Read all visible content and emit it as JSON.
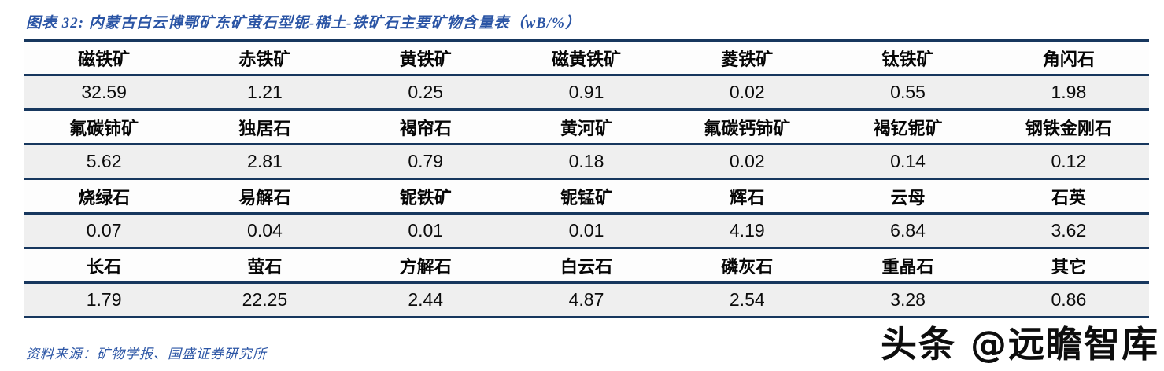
{
  "title": "图表 32:  内蒙古白云博鄂矿东矿萤石型铌-稀土-铁矿石主要矿物含量表（wB/%）",
  "source": "资料来源：矿物学报、国盛证券研究所",
  "watermark": "头条 @远瞻智库",
  "colors": {
    "rule_navy": "#17375e",
    "caption_blue": "#2b55a5",
    "value_row_bg": "#efefef",
    "name_row_bg": "#fdfdfd",
    "watermark_black": "#0d0d0d"
  },
  "table": {
    "bands": [
      {
        "names": [
          "磁铁矿",
          "赤铁矿",
          "黄铁矿",
          "磁黄铁矿",
          "菱铁矿",
          "钛铁矿",
          "角闪石"
        ],
        "values": [
          "32.59",
          "1.21",
          "0.25",
          "0.91",
          "0.02",
          "0.55",
          "1.98"
        ]
      },
      {
        "names": [
          "氟碳铈矿",
          "独居石",
          "褐帘石",
          "黄河矿",
          "氟碳钙铈矿",
          "褐钇铌矿",
          "钢铁金刚石"
        ],
        "values": [
          "5.62",
          "2.81",
          "0.79",
          "0.18",
          "0.02",
          "0.14",
          "0.12"
        ]
      },
      {
        "names": [
          "烧绿石",
          "易解石",
          "铌铁矿",
          "铌锰矿",
          "辉石",
          "云母",
          "石英"
        ],
        "values": [
          "0.07",
          "0.04",
          "0.01",
          "0.01",
          "4.19",
          "6.84",
          "3.62"
        ]
      },
      {
        "names": [
          "长石",
          "萤石",
          "方解石",
          "白云石",
          "磷灰石",
          "重晶石",
          "其它"
        ],
        "values": [
          "1.79",
          "22.25",
          "2.44",
          "4.87",
          "2.54",
          "3.28",
          "0.86"
        ]
      }
    ]
  },
  "chart_data": {
    "type": "table",
    "title": "内蒙古白云博鄂矿东矿萤石型铌-稀土-铁矿石主要矿物含量表（wB/%）",
    "minerals": [
      "磁铁矿",
      "赤铁矿",
      "黄铁矿",
      "磁黄铁矿",
      "菱铁矿",
      "钛铁矿",
      "角闪石",
      "氟碳铈矿",
      "独居石",
      "褐帘石",
      "黄河矿",
      "氟碳钙铈矿",
      "褐钇铌矿",
      "钢铁金刚石",
      "烧绿石",
      "易解石",
      "铌铁矿",
      "铌锰矿",
      "辉石",
      "云母",
      "石英",
      "长石",
      "萤石",
      "方解石",
      "白云石",
      "磷灰石",
      "重晶石",
      "其它"
    ],
    "values_wB_percent": [
      32.59,
      1.21,
      0.25,
      0.91,
      0.02,
      0.55,
      1.98,
      5.62,
      2.81,
      0.79,
      0.18,
      0.02,
      0.14,
      0.12,
      0.07,
      0.04,
      0.01,
      0.01,
      4.19,
      6.84,
      3.62,
      1.79,
      22.25,
      2.44,
      4.87,
      2.54,
      3.28,
      0.86
    ]
  }
}
